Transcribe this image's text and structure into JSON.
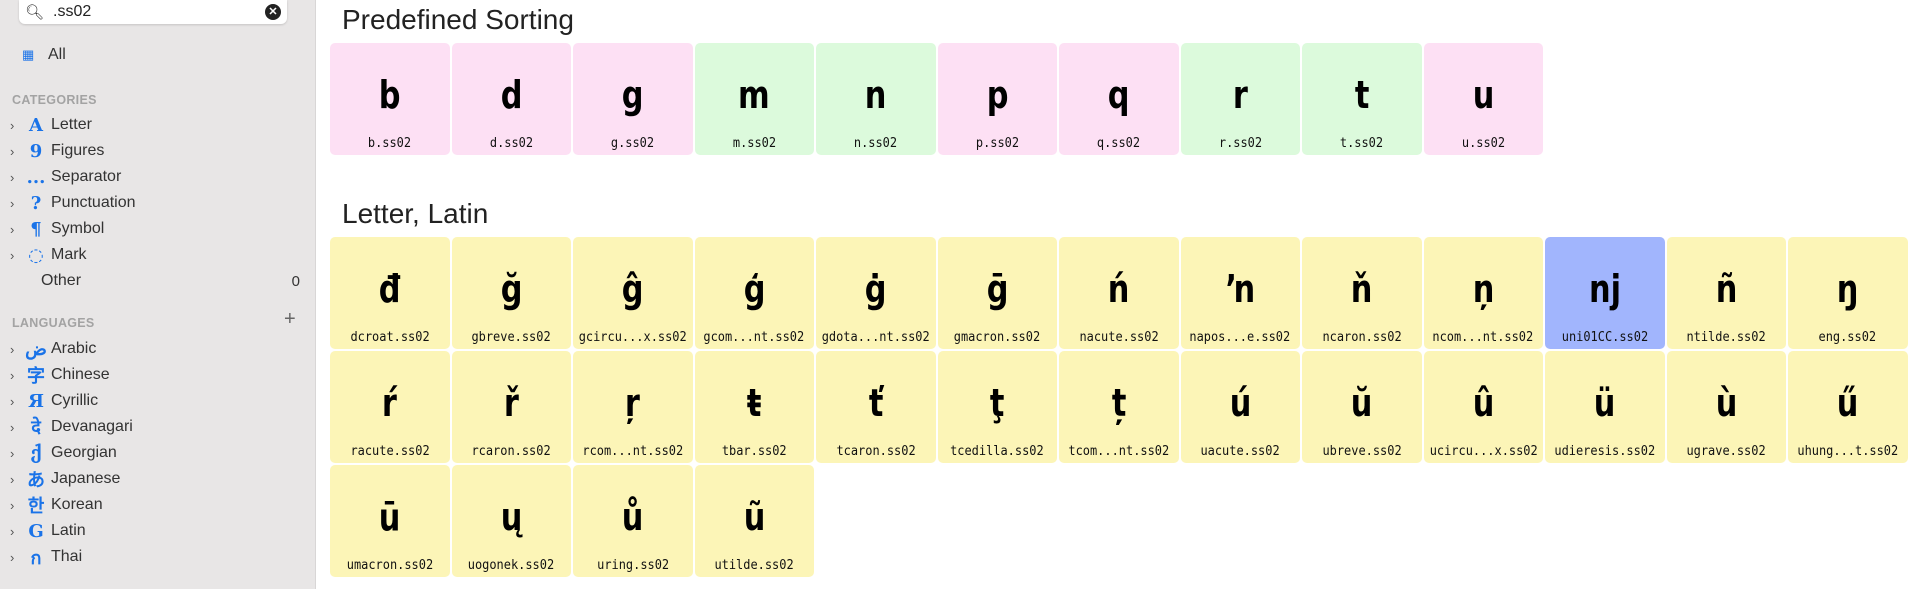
{
  "search": {
    "value": ".ss02",
    "icon": "search-icon",
    "clear_icon": "clear-icon"
  },
  "sidebar": {
    "all_label": "All",
    "categories_title": "CATEGORIES",
    "categories": [
      {
        "glyph": "A",
        "label": "Letter"
      },
      {
        "glyph": "9",
        "label": "Figures"
      },
      {
        "glyph": "...",
        "label": "Separator"
      },
      {
        "glyph": "?",
        "label": "Punctuation"
      },
      {
        "glyph": "¶",
        "label": "Symbol"
      },
      {
        "glyph": "◌",
        "label": "Mark"
      }
    ],
    "other": {
      "label": "Other",
      "count": "0"
    },
    "languages_title": "LANGUAGES",
    "languages": [
      {
        "glyph": "ض",
        "label": "Arabic"
      },
      {
        "glyph": "字",
        "label": "Chinese"
      },
      {
        "glyph": "Я",
        "label": "Cyrillic"
      },
      {
        "glyph": "दे",
        "label": "Devanagari"
      },
      {
        "glyph": "ქ",
        "label": "Georgian"
      },
      {
        "glyph": "あ",
        "label": "Japanese"
      },
      {
        "glyph": "한",
        "label": "Korean"
      },
      {
        "glyph": "G",
        "label": "Latin"
      },
      {
        "glyph": "ก",
        "label": "Thai"
      }
    ]
  },
  "sections": [
    {
      "title": "Predefined Sorting",
      "tiles": [
        {
          "g": "b",
          "n": "b.ss02",
          "c": "pink"
        },
        {
          "g": "d",
          "n": "d.ss02",
          "c": "pink"
        },
        {
          "g": "g",
          "n": "g.ss02",
          "c": "pink"
        },
        {
          "g": "m",
          "n": "m.ss02",
          "c": "green"
        },
        {
          "g": "n",
          "n": "n.ss02",
          "c": "green"
        },
        {
          "g": "p",
          "n": "p.ss02",
          "c": "pink"
        },
        {
          "g": "q",
          "n": "q.ss02",
          "c": "pink"
        },
        {
          "g": "r",
          "n": "r.ss02",
          "c": "green"
        },
        {
          "g": "t",
          "n": "t.ss02",
          "c": "green"
        },
        {
          "g": "u",
          "n": "u.ss02",
          "c": "pink"
        }
      ]
    },
    {
      "title": "Letter, Latin",
      "tiles": [
        {
          "g": "đ",
          "n": "dcroat.ss02",
          "c": "yellow"
        },
        {
          "g": "ğ",
          "n": "gbreve.ss02",
          "c": "yellow"
        },
        {
          "g": "ĝ",
          "n": "gcircu...x.ss02",
          "c": "yellow"
        },
        {
          "g": "ģ",
          "n": "gcom...nt.ss02",
          "c": "yellow"
        },
        {
          "g": "ġ",
          "n": "gdota...nt.ss02",
          "c": "yellow"
        },
        {
          "g": "ḡ",
          "n": "gmacron.ss02",
          "c": "yellow"
        },
        {
          "g": "ń",
          "n": "nacute.ss02",
          "c": "yellow"
        },
        {
          "g": "ŉ",
          "n": "napos...e.ss02",
          "c": "yellow"
        },
        {
          "g": "ň",
          "n": "ncaron.ss02",
          "c": "yellow"
        },
        {
          "g": "ņ",
          "n": "ncom...nt.ss02",
          "c": "yellow"
        },
        {
          "g": "nj",
          "n": "uni01CC.ss02",
          "c": "sel"
        },
        {
          "g": "ñ",
          "n": "ntilde.ss02",
          "c": "yellow"
        },
        {
          "g": "ŋ",
          "n": "eng.ss02",
          "c": "yellow"
        },
        {
          "g": "ŕ",
          "n": "racute.ss02",
          "c": "yellow"
        },
        {
          "g": "ř",
          "n": "rcaron.ss02",
          "c": "yellow"
        },
        {
          "g": "ŗ",
          "n": "rcom...nt.ss02",
          "c": "yellow"
        },
        {
          "g": "ŧ",
          "n": "tbar.ss02",
          "c": "yellow"
        },
        {
          "g": "ť",
          "n": "tcaron.ss02",
          "c": "yellow"
        },
        {
          "g": "ţ",
          "n": "tcedilla.ss02",
          "c": "yellow"
        },
        {
          "g": "ț",
          "n": "tcom...nt.ss02",
          "c": "yellow"
        },
        {
          "g": "ú",
          "n": "uacute.ss02",
          "c": "yellow"
        },
        {
          "g": "ŭ",
          "n": "ubreve.ss02",
          "c": "yellow"
        },
        {
          "g": "û",
          "n": "ucircu...x.ss02",
          "c": "yellow"
        },
        {
          "g": "ü",
          "n": "udieresis.ss02",
          "c": "yellow"
        },
        {
          "g": "ù",
          "n": "ugrave.ss02",
          "c": "yellow"
        },
        {
          "g": "ű",
          "n": "uhung...t.ss02",
          "c": "yellow"
        },
        {
          "g": "ū",
          "n": "umacron.ss02",
          "c": "yellow"
        },
        {
          "g": "ų",
          "n": "uogonek.ss02",
          "c": "yellow"
        },
        {
          "g": "ů",
          "n": "uring.ss02",
          "c": "yellow"
        },
        {
          "g": "ũ",
          "n": "utilde.ss02",
          "c": "yellow"
        }
      ]
    }
  ],
  "colors": {
    "pink": "#fde0f4",
    "green": "#dcfadc",
    "yellow": "#fcf5b7",
    "selected": "#a1b5fd",
    "accent": "#1a73e8"
  }
}
